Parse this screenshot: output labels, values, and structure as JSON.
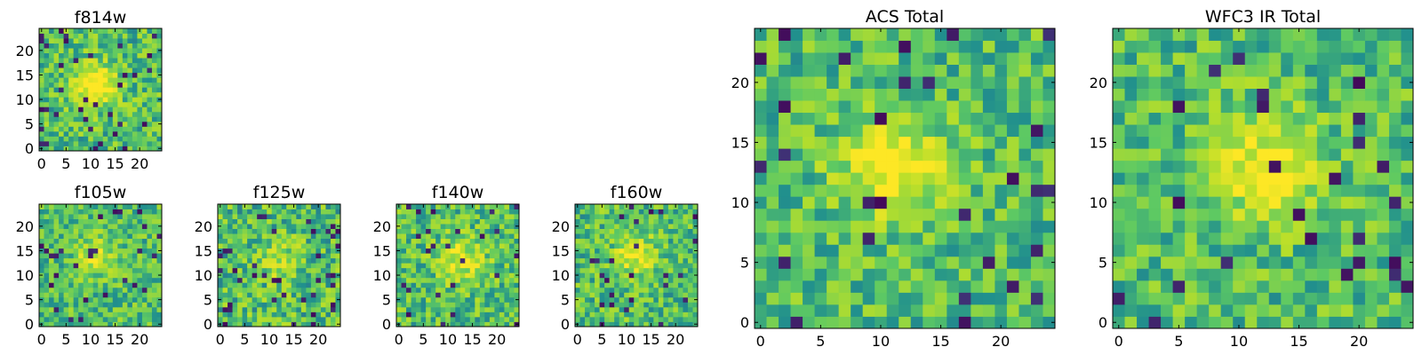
{
  "figure": {
    "colormap": [
      "#440154",
      "#3b528b",
      "#21908d",
      "#5dc963",
      "#b5de2b",
      "#fde725"
    ],
    "background": "#ffffff"
  },
  "chart_data": [
    {
      "type": "heatmap",
      "title": "f814w",
      "xlim": [
        0,
        25
      ],
      "ylim": [
        0,
        25
      ],
      "xticks": [
        0,
        5,
        10,
        15,
        20
      ],
      "yticks": [
        0,
        5,
        10,
        15,
        20
      ],
      "grid": false,
      "seed": 11,
      "source_center": [
        11,
        13
      ],
      "source_sigma": 3.0,
      "source_amp": 0.5,
      "noise": 0.22,
      "dark_fraction": 0.05
    },
    {
      "type": "heatmap",
      "title": "f105w",
      "xlim": [
        0,
        25
      ],
      "ylim": [
        0,
        25
      ],
      "xticks": [
        0,
        5,
        10,
        15,
        20
      ],
      "yticks": [
        0,
        5,
        10,
        15,
        20
      ],
      "grid": false,
      "seed": 23,
      "source_center": [
        11,
        14
      ],
      "source_sigma": 2.5,
      "source_amp": 0.35,
      "noise": 0.2,
      "dark_fraction": 0.04
    },
    {
      "type": "heatmap",
      "title": "f125w",
      "xlim": [
        0,
        25
      ],
      "ylim": [
        0,
        25
      ],
      "xticks": [
        0,
        5,
        10,
        15,
        20
      ],
      "yticks": [
        0,
        5,
        10,
        15,
        20
      ],
      "grid": false,
      "seed": 37,
      "source_center": [
        12,
        13
      ],
      "source_sigma": 3.0,
      "source_amp": 0.2,
      "noise": 0.24,
      "dark_fraction": 0.06
    },
    {
      "type": "heatmap",
      "title": "f140w",
      "xlim": [
        0,
        25
      ],
      "ylim": [
        0,
        25
      ],
      "xticks": [
        0,
        5,
        10,
        15,
        20
      ],
      "yticks": [
        0,
        5,
        10,
        15,
        20
      ],
      "grid": false,
      "seed": 41,
      "source_center": [
        13,
        13
      ],
      "source_sigma": 3.5,
      "source_amp": 0.3,
      "noise": 0.22,
      "dark_fraction": 0.05
    },
    {
      "type": "heatmap",
      "title": "f160w",
      "xlim": [
        0,
        25
      ],
      "ylim": [
        0,
        25
      ],
      "xticks": [
        0,
        5,
        10,
        15,
        20
      ],
      "yticks": [
        0,
        5,
        10,
        15,
        20
      ],
      "grid": false,
      "seed": 53,
      "source_center": [
        12,
        14
      ],
      "source_sigma": 3.0,
      "source_amp": 0.35,
      "noise": 0.22,
      "dark_fraction": 0.05
    },
    {
      "type": "heatmap",
      "title": "ACS Total",
      "xlim": [
        0,
        25
      ],
      "ylim": [
        0,
        25
      ],
      "xticks": [
        0,
        5,
        10,
        15,
        20
      ],
      "yticks": [
        0,
        5,
        10,
        15,
        20
      ],
      "grid": false,
      "seed": 67,
      "source_center": [
        11,
        13
      ],
      "source_sigma": 3.0,
      "source_amp": 0.45,
      "noise": 0.2,
      "dark_fraction": 0.04
    },
    {
      "type": "heatmap",
      "title": "WFC3 IR Total",
      "xlim": [
        0,
        25
      ],
      "ylim": [
        0,
        25
      ],
      "xticks": [
        0,
        5,
        10,
        15,
        20
      ],
      "yticks": [
        0,
        5,
        10,
        15,
        20
      ],
      "grid": false,
      "seed": 79,
      "source_center": [
        12,
        13
      ],
      "source_sigma": 3.0,
      "source_amp": 0.4,
      "noise": 0.2,
      "dark_fraction": 0.04
    }
  ]
}
